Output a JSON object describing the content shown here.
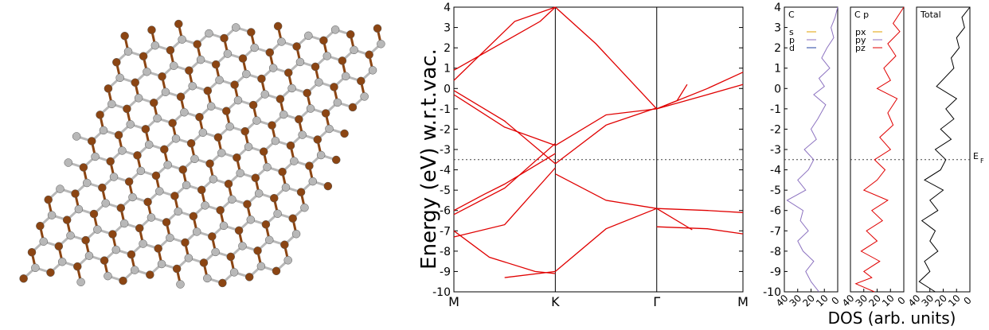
{
  "figure": {
    "ylabel": "Energy (eV) w.r.t.vac.",
    "dos_xlabel": "DOS (arb. units)",
    "ef_label": "E",
    "ef_sub": "F",
    "colors": {
      "band": "#e00000",
      "dos_c": "#8c72c0",
      "dos_p": "#e00000",
      "dos_total": "#000000",
      "atom_dark": "#8b4513",
      "atom_light": "#b8b8b8"
    }
  },
  "chart_data": [
    {
      "type": "line",
      "panel": "band structure",
      "ylim": [
        -10,
        4
      ],
      "yticks": [
        4,
        3,
        2,
        1,
        0,
        -1,
        -2,
        -3,
        -4,
        -5,
        -6,
        -7,
        -8,
        -9,
        -10
      ],
      "kpoints": [
        "M",
        "K",
        "Γ",
        "M"
      ],
      "kpos": [
        0,
        1,
        2,
        2.85
      ],
      "fermi_level": -3.5,
      "series": [
        {
          "x": [
            0,
            0.85,
            1
          ],
          "y": [
            0.9,
            3.3,
            4
          ]
        },
        {
          "x": [
            1,
            1.4,
            2
          ],
          "y": [
            4,
            2.2,
            -1.0
          ]
        },
        {
          "x": [
            0,
            0.6,
            1
          ],
          "y": [
            0.4,
            3.3,
            4
          ]
        },
        {
          "x": [
            0,
            0.5,
            1
          ],
          "y": [
            -0.1,
            -1.6,
            -3.7
          ]
        },
        {
          "x": [
            1,
            1.5,
            2
          ],
          "y": [
            -3.7,
            -1.8,
            -0.95
          ]
        },
        {
          "x": [
            0,
            0.5,
            1
          ],
          "y": [
            -0.3,
            -1.9,
            -2.8
          ]
        },
        {
          "x": [
            1,
            1.5,
            2
          ],
          "y": [
            -2.8,
            -1.3,
            -1.0
          ]
        },
        {
          "x": [
            2,
            2.5,
            2.85
          ],
          "y": [
            -1.0,
            0.0,
            0.8
          ]
        },
        {
          "x": [
            2,
            2.5,
            2.85
          ],
          "y": [
            -1.0,
            -0.3,
            0.2
          ]
        },
        {
          "x": [
            2,
            2.2,
            2.3
          ],
          "y": [
            -1.0,
            -0.6,
            0.2
          ]
        },
        {
          "x": [
            0,
            0.3,
            0.5,
            1
          ],
          "y": [
            -6.0,
            -5.2,
            -4.7,
            -3.2
          ]
        },
        {
          "x": [
            0,
            0.5,
            1
          ],
          "y": [
            -6.2,
            -4.9,
            -2.7
          ]
        },
        {
          "x": [
            0,
            0.35,
            0.8,
            1
          ],
          "y": [
            -7.0,
            -8.3,
            -9.0,
            -9.1
          ]
        },
        {
          "x": [
            0,
            0.5,
            1
          ],
          "y": [
            -7.3,
            -6.7,
            -3.9
          ]
        },
        {
          "x": [
            0.5,
            1
          ],
          "y": [
            -9.3,
            -9.0
          ]
        },
        {
          "x": [
            1,
            1.5,
            2
          ],
          "y": [
            -9.0,
            -6.9,
            -5.9
          ]
        },
        {
          "x": [
            1,
            1.5,
            2
          ],
          "y": [
            -4.2,
            -5.5,
            -5.9
          ]
        },
        {
          "x": [
            2,
            2.5,
            2.85
          ],
          "y": [
            -5.9,
            -6.0,
            -6.1
          ]
        },
        {
          "x": [
            2,
            2.5,
            2.85
          ],
          "y": [
            -6.8,
            -6.9,
            -7.15
          ]
        },
        {
          "x": [
            2,
            2.35
          ],
          "y": [
            -5.9,
            -6.95
          ]
        }
      ]
    },
    {
      "type": "line",
      "panel": "C",
      "xlim": [
        40,
        0
      ],
      "xticks": [
        40,
        30,
        20,
        10,
        0
      ],
      "legend": [
        "s",
        "p",
        "d"
      ],
      "legend_colors": [
        "#e0a000",
        "#8c72c0",
        "#2040a0"
      ],
      "x": [
        0,
        2,
        5,
        3,
        8,
        12,
        6,
        14,
        10,
        18,
        9,
        15,
        20,
        16,
        25,
        18,
        22,
        30,
        24,
        38,
        26,
        28,
        22,
        30,
        26,
        18,
        24,
        20,
        14
      ],
      "y": [
        4,
        3.5,
        3,
        2.5,
        2,
        1.5,
        1,
        0.5,
        0.1,
        -0.3,
        -0.8,
        -1.5,
        -2,
        -2.5,
        -3,
        -3.5,
        -4,
        -4.5,
        -5,
        -5.5,
        -6,
        -6.5,
        -7,
        -7.5,
        -8,
        -8.5,
        -9,
        -9.5,
        -10
      ]
    },
    {
      "type": "line",
      "panel": "C p",
      "xlim": [
        40,
        0
      ],
      "xticks": [
        40,
        30,
        20,
        10,
        0
      ],
      "legend": [
        "px",
        "py",
        "pz"
      ],
      "legend_colors": [
        "#e0a000",
        "#8c72c0",
        "#e00000"
      ],
      "x": [
        0,
        8,
        3,
        12,
        6,
        15,
        10,
        20,
        5,
        12,
        8,
        18,
        10,
        22,
        14,
        20,
        30,
        12,
        24,
        16,
        28,
        20,
        32,
        18,
        30,
        24,
        36,
        22
      ],
      "y": [
        4,
        3.2,
        2.8,
        2.2,
        1.6,
        1.0,
        0.4,
        0,
        -0.5,
        -1.2,
        -1.8,
        -2.4,
        -3,
        -3.5,
        -4,
        -4.5,
        -5,
        -5.5,
        -6,
        -6.5,
        -7,
        -7.5,
        -8,
        -8.5,
        -9,
        -9.3,
        -9.6,
        -10
      ]
    },
    {
      "type": "line",
      "panel": "Total",
      "xlim": [
        40,
        0
      ],
      "xticks": [
        40,
        30,
        20,
        10,
        0
      ],
      "legend": [
        "Total"
      ],
      "x": [
        0,
        6,
        4,
        10,
        8,
        14,
        12,
        25,
        10,
        18,
        12,
        22,
        14,
        26,
        18,
        22,
        34,
        20,
        30,
        24,
        36,
        26,
        30,
        24,
        34,
        30,
        38,
        26
      ],
      "y": [
        4,
        3.5,
        3,
        2.5,
        2,
        1.5,
        1,
        0.1,
        -0.5,
        -1,
        -1.5,
        -2,
        -2.5,
        -3,
        -3.5,
        -4,
        -4.5,
        -5,
        -5.5,
        -6,
        -6.5,
        -7,
        -7.5,
        -8,
        -8.5,
        -9,
        -9.5,
        -10
      ]
    }
  ]
}
